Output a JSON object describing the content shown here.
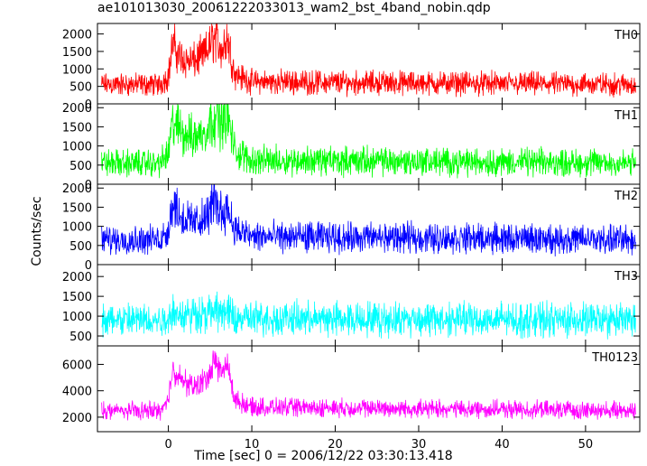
{
  "chart_data": {
    "type": "line",
    "title": "ae101013030_20061222033013_wam2_bst_4band_nobin.qdp",
    "xlabel": "Time [sec] 0 = 2006/12/22 03:30:13.418",
    "ylabel": "Counts/sec",
    "xlim": [
      -8.5,
      56.5
    ],
    "xticks": [
      "0",
      "10",
      "20",
      "30",
      "40",
      "50"
    ],
    "xtick_values": [
      0,
      10,
      20,
      30,
      40,
      50
    ],
    "grid": false,
    "panels": [
      {
        "name": "TH0",
        "color": "#ff0000",
        "ylim": [
          0,
          2300
        ],
        "yticks": [
          0,
          500,
          1000,
          1500,
          2000
        ],
        "baseline": [
          550,
          350
        ],
        "burst_profile": [
          [
            -1,
            0
          ],
          [
            0,
            250
          ],
          [
            0.5,
            1150
          ],
          [
            1.5,
            750
          ],
          [
            3,
            650
          ],
          [
            4.5,
            900
          ],
          [
            5.5,
            1350
          ],
          [
            6.5,
            1000
          ],
          [
            7,
            1400
          ],
          [
            8,
            300
          ],
          [
            10,
            80
          ],
          [
            56,
            0
          ]
        ],
        "x_start": -8
      },
      {
        "name": "TH1",
        "color": "#00ff00",
        "ylim": [
          0,
          2100
        ],
        "yticks": [
          0,
          500,
          1000,
          1500,
          2000
        ],
        "baseline": [
          550,
          380
        ],
        "burst_profile": [
          [
            -1,
            0
          ],
          [
            0,
            250
          ],
          [
            0.5,
            1050
          ],
          [
            1.5,
            850
          ],
          [
            3,
            650
          ],
          [
            4.5,
            850
          ],
          [
            5.5,
            1250
          ],
          [
            6.5,
            1050
          ],
          [
            7,
            1350
          ],
          [
            8,
            300
          ],
          [
            10,
            80
          ],
          [
            56,
            0
          ]
        ],
        "x_start": -8
      },
      {
        "name": "TH2",
        "color": "#0000ff",
        "ylim": [
          0,
          2100
        ],
        "yticks": [
          0,
          500,
          1000,
          1500,
          2000
        ],
        "baseline": [
          650,
          400
        ],
        "burst_profile": [
          [
            -1,
            0
          ],
          [
            0,
            250
          ],
          [
            0.5,
            1000
          ],
          [
            1.5,
            600
          ],
          [
            3,
            450
          ],
          [
            4.5,
            550
          ],
          [
            5.5,
            1050
          ],
          [
            6.5,
            700
          ],
          [
            7,
            900
          ],
          [
            8,
            250
          ],
          [
            10,
            80
          ],
          [
            56,
            0
          ]
        ],
        "x_start": -8
      },
      {
        "name": "TH3",
        "color": "#00ffff",
        "ylim": [
          250,
          2300
        ],
        "yticks": [
          500,
          1000,
          1500,
          2000
        ],
        "baseline": [
          900,
          450
        ],
        "burst_profile": [
          [
            -1,
            0
          ],
          [
            0,
            60
          ],
          [
            0.5,
            250
          ],
          [
            1.5,
            120
          ],
          [
            5.5,
            200
          ],
          [
            7,
            200
          ],
          [
            8,
            40
          ],
          [
            56,
            0
          ]
        ],
        "x_start": -8
      },
      {
        "name": "TH0123",
        "color": "#ff00ff",
        "ylim": [
          900,
          7400
        ],
        "yticks": [
          2000,
          4000,
          6000
        ],
        "baseline": [
          2500,
          700
        ],
        "burst_profile": [
          [
            -1,
            0
          ],
          [
            0,
            700
          ],
          [
            0.5,
            3300
          ],
          [
            1.5,
            2300
          ],
          [
            3,
            1800
          ],
          [
            4.5,
            2300
          ],
          [
            5.5,
            3700
          ],
          [
            6.5,
            2800
          ],
          [
            7,
            3600
          ],
          [
            8,
            800
          ],
          [
            10,
            250
          ],
          [
            56,
            0
          ]
        ],
        "x_start": -8
      }
    ]
  }
}
